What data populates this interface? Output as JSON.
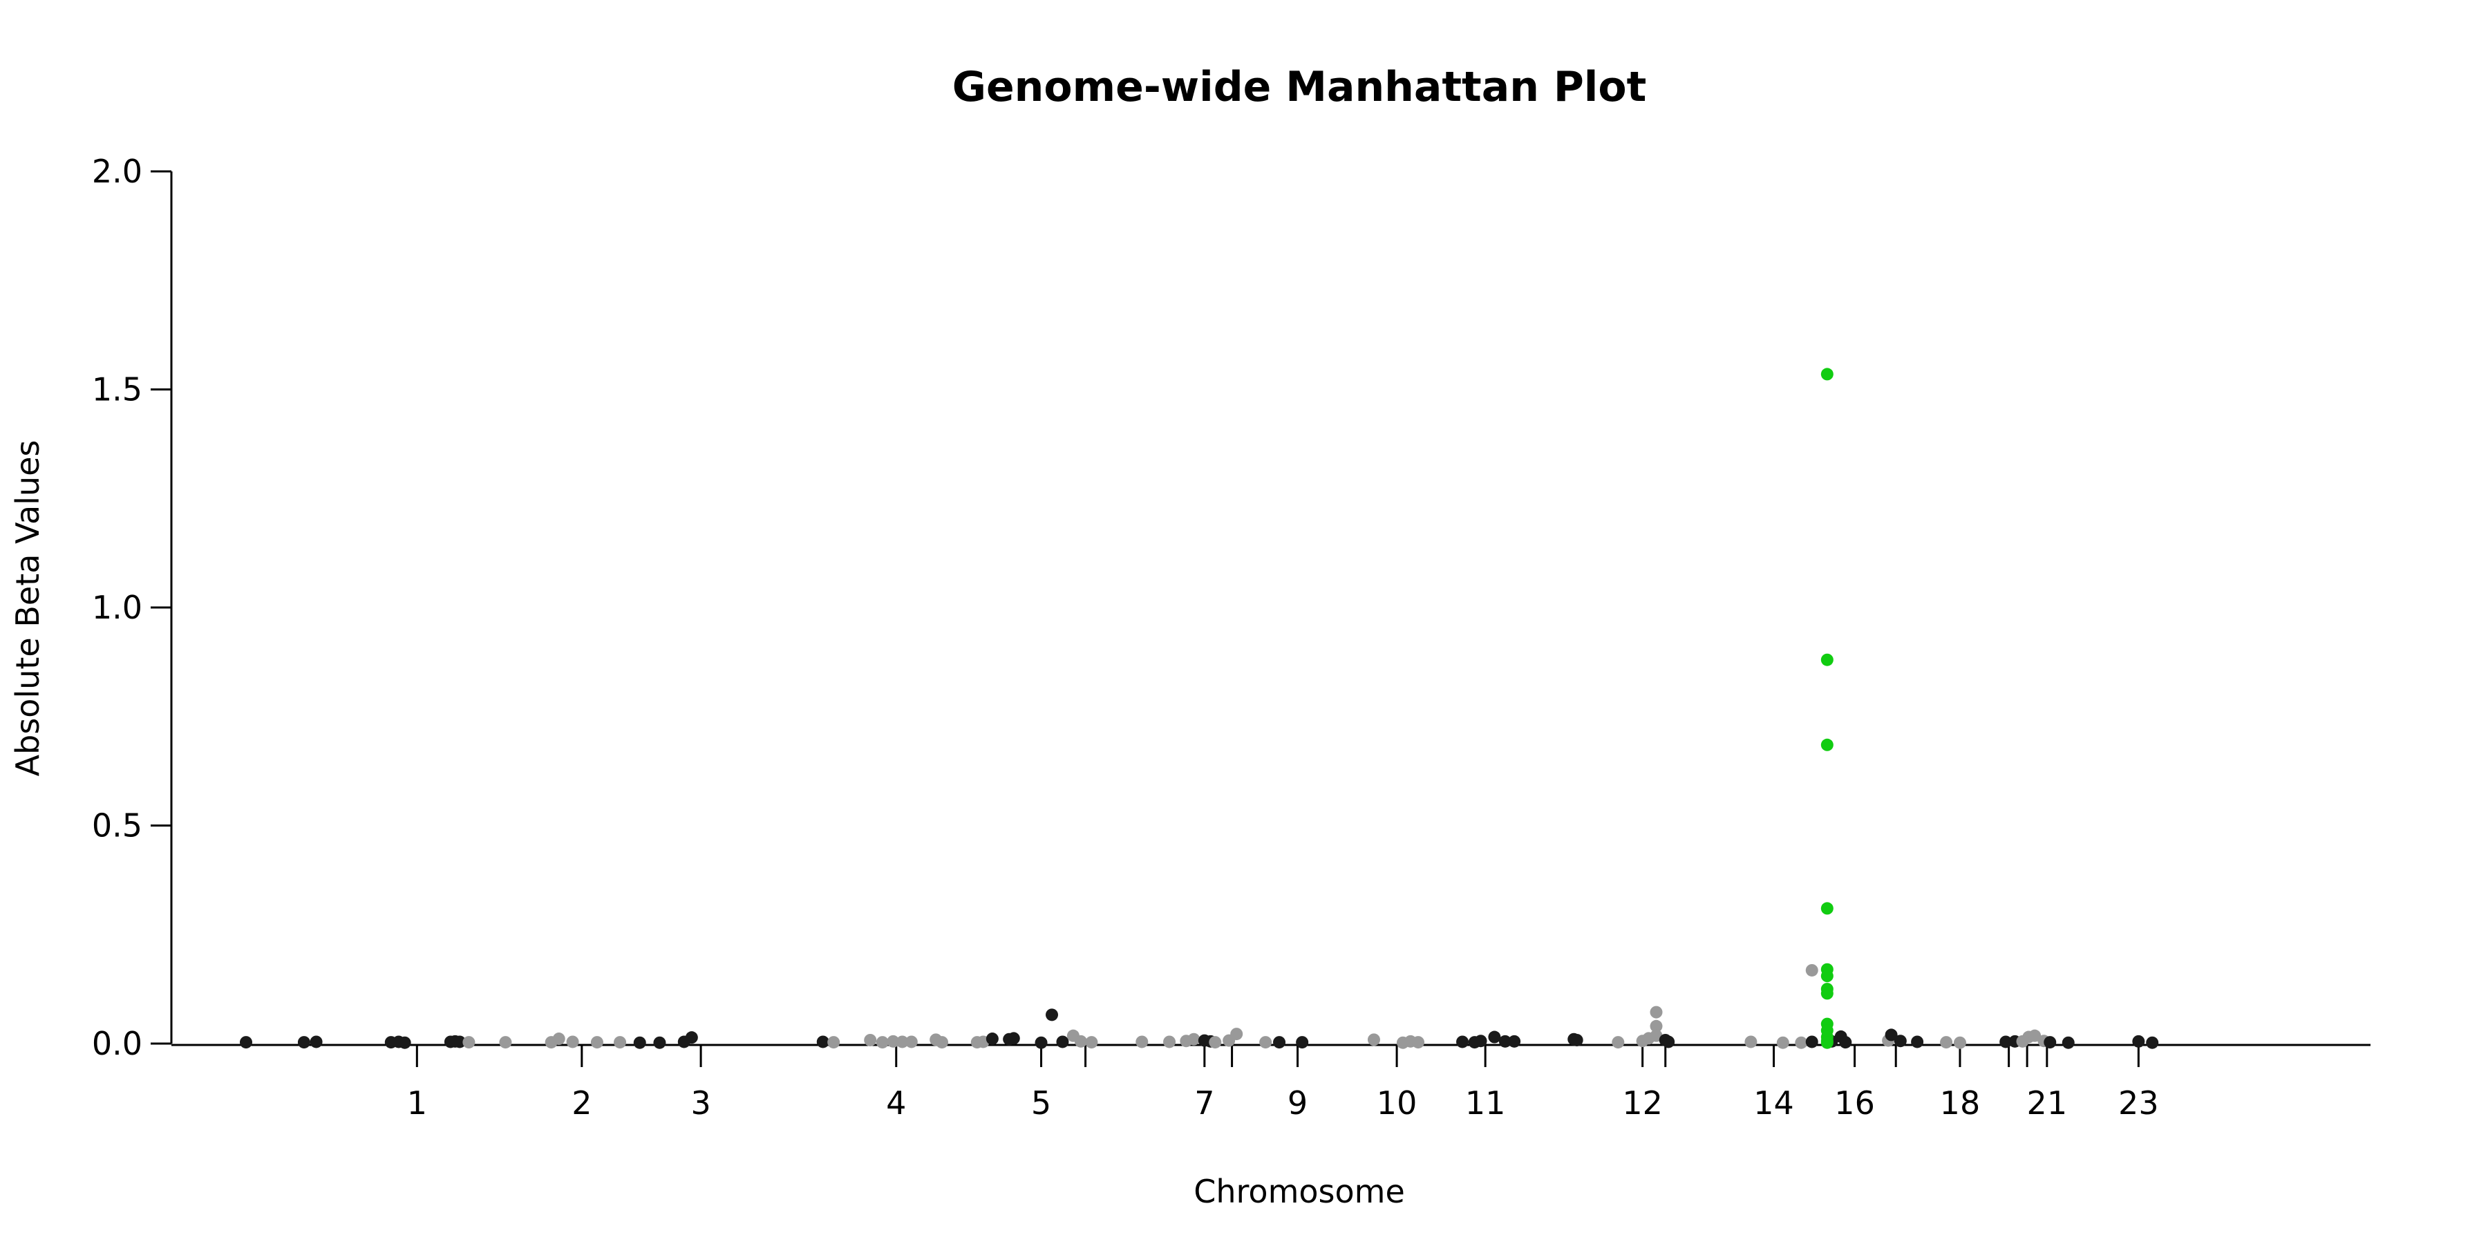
{
  "chart_data": {
    "type": "scatter",
    "title": "Genome-wide Manhattan Plot",
    "xlabel": "Chromosome",
    "ylabel": "Absolute Beta Values",
    "ylim": [
      0,
      2.0
    ],
    "yticks": [
      {
        "value": 0.0,
        "label": "0.0"
      },
      {
        "value": 0.5,
        "label": "0.5"
      },
      {
        "value": 1.0,
        "label": "1.0"
      },
      {
        "value": 1.5,
        "label": "1.5"
      },
      {
        "value": 2.0,
        "label": "2.0"
      }
    ],
    "xlim": [
      -10,
      1430
    ],
    "xticks": [
      {
        "pos": 150,
        "label": "1"
      },
      {
        "pos": 258,
        "label": "2"
      },
      {
        "pos": 336,
        "label": "3"
      },
      {
        "pos": 464,
        "label": "4"
      },
      {
        "pos": 559,
        "label": "5"
      },
      {
        "pos": 588,
        "label": ""
      },
      {
        "pos": 666,
        "label": "7"
      },
      {
        "pos": 684,
        "label": ""
      },
      {
        "pos": 727,
        "label": "9"
      },
      {
        "pos": 792,
        "label": "10"
      },
      {
        "pos": 850,
        "label": "11"
      },
      {
        "pos": 953,
        "label": "12"
      },
      {
        "pos": 968,
        "label": ""
      },
      {
        "pos": 1039,
        "label": "14"
      },
      {
        "pos": 1092,
        "label": "16"
      },
      {
        "pos": 1119,
        "label": ""
      },
      {
        "pos": 1161,
        "label": "18"
      },
      {
        "pos": 1193,
        "label": ""
      },
      {
        "pos": 1205,
        "label": ""
      },
      {
        "pos": 1218,
        "label": "21"
      },
      {
        "pos": 1278,
        "label": "23"
      }
    ],
    "grid": false,
    "legend": "none",
    "colors": {
      "dark": "#1a1a1a",
      "light": "#999999",
      "highlight": "#11cc11"
    },
    "points": [
      {
        "x": 38,
        "y": 0.003,
        "c": "dark"
      },
      {
        "x": 76,
        "y": 0.003,
        "c": "dark"
      },
      {
        "x": 84,
        "y": 0.004,
        "c": "dark"
      },
      {
        "x": 133,
        "y": 0.003,
        "c": "dark"
      },
      {
        "x": 138,
        "y": 0.004,
        "c": "dark"
      },
      {
        "x": 142,
        "y": 0.002,
        "c": "dark"
      },
      {
        "x": 172,
        "y": 0.004,
        "c": "dark"
      },
      {
        "x": 175,
        "y": 0.005,
        "c": "dark"
      },
      {
        "x": 178,
        "y": 0.004,
        "c": "dark"
      },
      {
        "x": 184,
        "y": 0.003,
        "c": "light"
      },
      {
        "x": 208,
        "y": 0.003,
        "c": "light"
      },
      {
        "x": 238,
        "y": 0.003,
        "c": "light"
      },
      {
        "x": 243,
        "y": 0.011,
        "c": "light"
      },
      {
        "x": 252,
        "y": 0.004,
        "c": "light"
      },
      {
        "x": 268,
        "y": 0.003,
        "c": "light"
      },
      {
        "x": 283,
        "y": 0.003,
        "c": "light"
      },
      {
        "x": 296,
        "y": 0.002,
        "c": "dark"
      },
      {
        "x": 309,
        "y": 0.002,
        "c": "dark"
      },
      {
        "x": 325,
        "y": 0.004,
        "c": "dark"
      },
      {
        "x": 330,
        "y": 0.014,
        "c": "dark"
      },
      {
        "x": 416,
        "y": 0.004,
        "c": "dark"
      },
      {
        "x": 423,
        "y": 0.003,
        "c": "light"
      },
      {
        "x": 447,
        "y": 0.008,
        "c": "light"
      },
      {
        "x": 455,
        "y": 0.003,
        "c": "light"
      },
      {
        "x": 462,
        "y": 0.005,
        "c": "light"
      },
      {
        "x": 468,
        "y": 0.004,
        "c": "light"
      },
      {
        "x": 474,
        "y": 0.004,
        "c": "light"
      },
      {
        "x": 490,
        "y": 0.009,
        "c": "light"
      },
      {
        "x": 494,
        "y": 0.003,
        "c": "light"
      },
      {
        "x": 517,
        "y": 0.003,
        "c": "light"
      },
      {
        "x": 521,
        "y": 0.004,
        "c": "light"
      },
      {
        "x": 527,
        "y": 0.011,
        "c": "dark"
      },
      {
        "x": 538,
        "y": 0.01,
        "c": "dark"
      },
      {
        "x": 541,
        "y": 0.012,
        "c": "dark"
      },
      {
        "x": 559,
        "y": 0.002,
        "c": "dark"
      },
      {
        "x": 566,
        "y": 0.066,
        "c": "dark"
      },
      {
        "x": 573,
        "y": 0.004,
        "c": "dark"
      },
      {
        "x": 580,
        "y": 0.018,
        "c": "light"
      },
      {
        "x": 585,
        "y": 0.005,
        "c": "light"
      },
      {
        "x": 592,
        "y": 0.003,
        "c": "light"
      },
      {
        "x": 625,
        "y": 0.004,
        "c": "light"
      },
      {
        "x": 643,
        "y": 0.004,
        "c": "light"
      },
      {
        "x": 654,
        "y": 0.006,
        "c": "light"
      },
      {
        "x": 659,
        "y": 0.01,
        "c": "light"
      },
      {
        "x": 666,
        "y": 0.007,
        "c": "dark"
      },
      {
        "x": 670,
        "y": 0.005,
        "c": "dark"
      },
      {
        "x": 673,
        "y": 0.003,
        "c": "light"
      },
      {
        "x": 682,
        "y": 0.007,
        "c": "light"
      },
      {
        "x": 687,
        "y": 0.022,
        "c": "light"
      },
      {
        "x": 706,
        "y": 0.003,
        "c": "light"
      },
      {
        "x": 715,
        "y": 0.003,
        "c": "dark"
      },
      {
        "x": 730,
        "y": 0.003,
        "c": "dark"
      },
      {
        "x": 777,
        "y": 0.009,
        "c": "light"
      },
      {
        "x": 796,
        "y": 0.002,
        "c": "light"
      },
      {
        "x": 801,
        "y": 0.005,
        "c": "light"
      },
      {
        "x": 806,
        "y": 0.003,
        "c": "light"
      },
      {
        "x": 835,
        "y": 0.004,
        "c": "dark"
      },
      {
        "x": 843,
        "y": 0.003,
        "c": "dark"
      },
      {
        "x": 847,
        "y": 0.006,
        "c": "dark"
      },
      {
        "x": 856,
        "y": 0.015,
        "c": "dark"
      },
      {
        "x": 863,
        "y": 0.005,
        "c": "dark"
      },
      {
        "x": 869,
        "y": 0.005,
        "c": "dark"
      },
      {
        "x": 908,
        "y": 0.01,
        "c": "dark"
      },
      {
        "x": 910,
        "y": 0.008,
        "c": "dark"
      },
      {
        "x": 937,
        "y": 0.003,
        "c": "light"
      },
      {
        "x": 953,
        "y": 0.006,
        "c": "light"
      },
      {
        "x": 957,
        "y": 0.012,
        "c": "light"
      },
      {
        "x": 962,
        "y": 0.072,
        "c": "light"
      },
      {
        "x": 962,
        "y": 0.04,
        "c": "light"
      },
      {
        "x": 962,
        "y": 0.018,
        "c": "light"
      },
      {
        "x": 968,
        "y": 0.008,
        "c": "dark"
      },
      {
        "x": 970,
        "y": 0.004,
        "c": "dark"
      },
      {
        "x": 1024,
        "y": 0.004,
        "c": "light"
      },
      {
        "x": 1045,
        "y": 0.002,
        "c": "light"
      },
      {
        "x": 1057,
        "y": 0.002,
        "c": "light"
      },
      {
        "x": 1064,
        "y": 0.168,
        "c": "light"
      },
      {
        "x": 1064,
        "y": 0.004,
        "c": "dark"
      },
      {
        "x": 1077,
        "y": 0.005,
        "c": "dark"
      },
      {
        "x": 1083,
        "y": 0.016,
        "c": "dark"
      },
      {
        "x": 1086,
        "y": 0.003,
        "c": "dark"
      },
      {
        "x": 1074,
        "y": 1.535,
        "c": "highlight"
      },
      {
        "x": 1074,
        "y": 0.88,
        "c": "highlight"
      },
      {
        "x": 1074,
        "y": 0.685,
        "c": "highlight"
      },
      {
        "x": 1074,
        "y": 0.31,
        "c": "highlight"
      },
      {
        "x": 1074,
        "y": 0.17,
        "c": "highlight"
      },
      {
        "x": 1074,
        "y": 0.155,
        "c": "highlight"
      },
      {
        "x": 1074,
        "y": 0.125,
        "c": "highlight"
      },
      {
        "x": 1074,
        "y": 0.115,
        "c": "highlight"
      },
      {
        "x": 1074,
        "y": 0.045,
        "c": "highlight"
      },
      {
        "x": 1074,
        "y": 0.03,
        "c": "highlight"
      },
      {
        "x": 1074,
        "y": 0.015,
        "c": "highlight"
      },
      {
        "x": 1074,
        "y": 0.006,
        "c": "highlight"
      },
      {
        "x": 1074,
        "y": 0.002,
        "c": "highlight"
      },
      {
        "x": 1114,
        "y": 0.007,
        "c": "light"
      },
      {
        "x": 1116,
        "y": 0.02,
        "c": "dark"
      },
      {
        "x": 1122,
        "y": 0.006,
        "c": "dark"
      },
      {
        "x": 1133,
        "y": 0.004,
        "c": "dark"
      },
      {
        "x": 1152,
        "y": 0.003,
        "c": "light"
      },
      {
        "x": 1161,
        "y": 0.002,
        "c": "light"
      },
      {
        "x": 1191,
        "y": 0.004,
        "c": "dark"
      },
      {
        "x": 1197,
        "y": 0.005,
        "c": "dark"
      },
      {
        "x": 1202,
        "y": 0.005,
        "c": "light"
      },
      {
        "x": 1206,
        "y": 0.015,
        "c": "light"
      },
      {
        "x": 1210,
        "y": 0.018,
        "c": "light"
      },
      {
        "x": 1216,
        "y": 0.006,
        "c": "light"
      },
      {
        "x": 1220,
        "y": 0.003,
        "c": "dark"
      },
      {
        "x": 1232,
        "y": 0.002,
        "c": "dark"
      },
      {
        "x": 1278,
        "y": 0.005,
        "c": "dark"
      },
      {
        "x": 1287,
        "y": 0.002,
        "c": "dark"
      }
    ]
  }
}
